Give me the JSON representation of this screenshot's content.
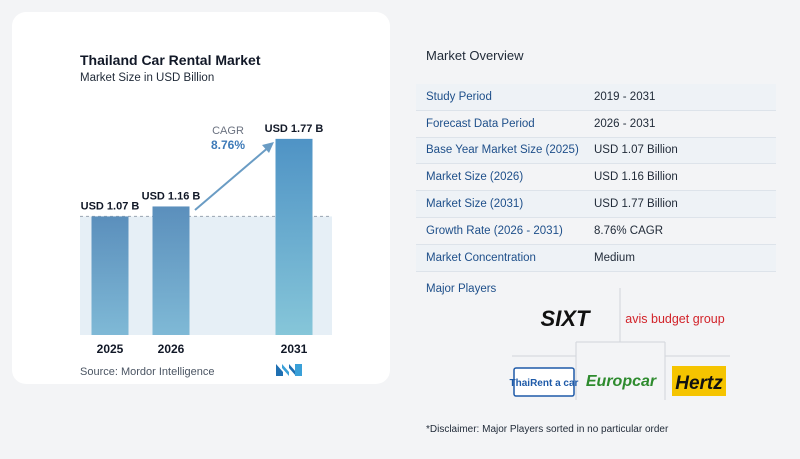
{
  "chart_data": {
    "type": "bar",
    "title": "Thailand Car Rental Market",
    "subtitle": "Market Size in USD Billion",
    "categories": [
      "2025",
      "2026",
      "2031"
    ],
    "values": [
      1.07,
      1.16,
      1.77
    ],
    "data_labels": [
      "USD 1.07 B",
      "USD 1.16 B",
      "USD 1.77 B"
    ],
    "ylim": [
      0,
      1.85
    ],
    "cagr_label": "CAGR",
    "cagr_value": "8.76%",
    "bar_color": "#6a9cc4",
    "last_bar_color": "#5a9cc8",
    "reference_band_color": "#dbe8f2",
    "source": "Source:  Mordor Intelligence"
  },
  "overview": {
    "title": "Market Overview",
    "rows": [
      {
        "label": "Study Period",
        "value": "2019 - 2031"
      },
      {
        "label": "Forecast Data Period",
        "value": "2026 - 2031"
      },
      {
        "label": "Base Year Market Size (2025)",
        "value": "USD 1.07 Billion"
      },
      {
        "label": "Market Size (2026)",
        "value": "USD 1.16 Billion"
      },
      {
        "label": "Market Size (2031)",
        "value": "USD 1.77 Billion"
      },
      {
        "label": "Growth Rate (2026 - 2031)",
        "value": "8.76% CAGR"
      },
      {
        "label": "Market Concentration",
        "value": "Medium"
      }
    ]
  },
  "players": {
    "title": "Major Players",
    "items": [
      "SIXT",
      "avis budget group",
      "ThaiRent a car",
      "Europcar",
      "Hertz"
    ],
    "logo_colors": {
      "sixt": "#111111",
      "avis": "#d2232a",
      "thairent": "#1e5aa8",
      "europcar": "#2e8b2e",
      "hertz": "#111111",
      "hertz_bg": "#f5c400"
    }
  },
  "disclaimer": "*Disclaimer: Major Players sorted in no particular order"
}
